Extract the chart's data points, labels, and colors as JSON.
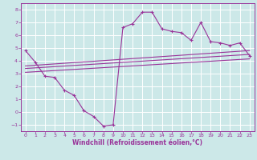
{
  "xlabel": "Windchill (Refroidissement éolien,°C)",
  "bg_color": "#cce8e8",
  "grid_color": "#ffffff",
  "line_color": "#993399",
  "xlim": [
    -0.5,
    23.5
  ],
  "ylim": [
    -1.5,
    8.5
  ],
  "xticks": [
    0,
    1,
    2,
    3,
    4,
    5,
    6,
    7,
    8,
    9,
    10,
    11,
    12,
    13,
    14,
    15,
    16,
    17,
    18,
    19,
    20,
    21,
    22,
    23
  ],
  "yticks": [
    -1,
    0,
    1,
    2,
    3,
    4,
    5,
    6,
    7,
    8
  ],
  "line1_x": [
    0,
    1,
    2,
    3,
    4,
    5,
    6,
    7,
    8,
    9,
    10,
    11,
    12,
    13,
    14,
    15,
    16,
    17,
    18,
    19,
    20,
    21,
    22,
    23
  ],
  "line1_y": [
    4.8,
    3.9,
    2.8,
    2.7,
    1.7,
    1.3,
    0.1,
    -0.35,
    -1.1,
    -1.0,
    6.6,
    6.9,
    7.8,
    7.8,
    6.5,
    6.3,
    6.2,
    5.6,
    7.0,
    5.5,
    5.4,
    5.2,
    5.4,
    4.4
  ],
  "line2_x": [
    0,
    23
  ],
  "line2_y": [
    3.1,
    4.15
  ],
  "line3_x": [
    0,
    23
  ],
  "line3_y": [
    3.4,
    4.5
  ],
  "line4_x": [
    0,
    23
  ],
  "line4_y": [
    3.6,
    4.8
  ]
}
